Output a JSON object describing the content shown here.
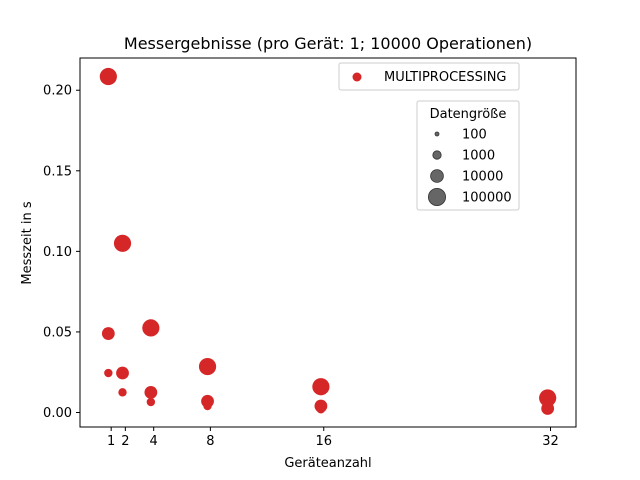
{
  "chart_data": {
    "type": "scatter",
    "title": "Messergebnisse (pro Gerät: 1; 10000 Operationen)",
    "xlabel": "Geräteanzahl",
    "ylabel": "Messzeit in s",
    "xlim": [
      -1.2,
      33.8
    ],
    "ylim": [
      -0.009,
      0.22
    ],
    "xticks": [
      1,
      2,
      4,
      8,
      16,
      32
    ],
    "yticks": [
      0.0,
      0.05,
      0.1,
      0.15,
      0.2
    ],
    "ytick_labels": [
      "0.00",
      "0.05",
      "0.10",
      "0.15",
      "0.20"
    ],
    "grid": false,
    "series": [
      {
        "name": "MULTIPROCESSING",
        "color": "#d62728",
        "points": [
          {
            "x": 0.8,
            "y": 0.2085,
            "size": 100000
          },
          {
            "x": 0.8,
            "y": 0.049,
            "size": 10000
          },
          {
            "x": 0.8,
            "y": 0.0245,
            "size": 1000
          },
          {
            "x": 1.8,
            "y": 0.105,
            "size": 100000
          },
          {
            "x": 1.8,
            "y": 0.0245,
            "size": 10000
          },
          {
            "x": 1.8,
            "y": 0.0125,
            "size": 1000
          },
          {
            "x": 3.8,
            "y": 0.0525,
            "size": 100000
          },
          {
            "x": 3.8,
            "y": 0.0125,
            "size": 10000
          },
          {
            "x": 3.8,
            "y": 0.0065,
            "size": 1000
          },
          {
            "x": 7.8,
            "y": 0.0285,
            "size": 100000
          },
          {
            "x": 7.8,
            "y": 0.007,
            "size": 10000
          },
          {
            "x": 7.8,
            "y": 0.004,
            "size": 1000
          },
          {
            "x": 15.8,
            "y": 0.016,
            "size": 100000
          },
          {
            "x": 15.8,
            "y": 0.004,
            "size": 10000
          },
          {
            "x": 15.8,
            "y": 0.002,
            "size": 1000
          },
          {
            "x": 31.8,
            "y": 0.009,
            "size": 100000
          },
          {
            "x": 31.8,
            "y": 0.0025,
            "size": 10000
          }
        ]
      }
    ],
    "legend_series": {
      "position": "top-right",
      "label": "MULTIPROCESSING",
      "color": "#d62728"
    },
    "legend_size": {
      "title": "Datengröße",
      "position": "upper-right",
      "entries": [
        {
          "label": "100",
          "size": 100
        },
        {
          "label": "1000",
          "size": 1000
        },
        {
          "label": "10000",
          "size": 10000
        },
        {
          "label": "100000",
          "size": 100000
        }
      ],
      "color": "#555555"
    }
  }
}
